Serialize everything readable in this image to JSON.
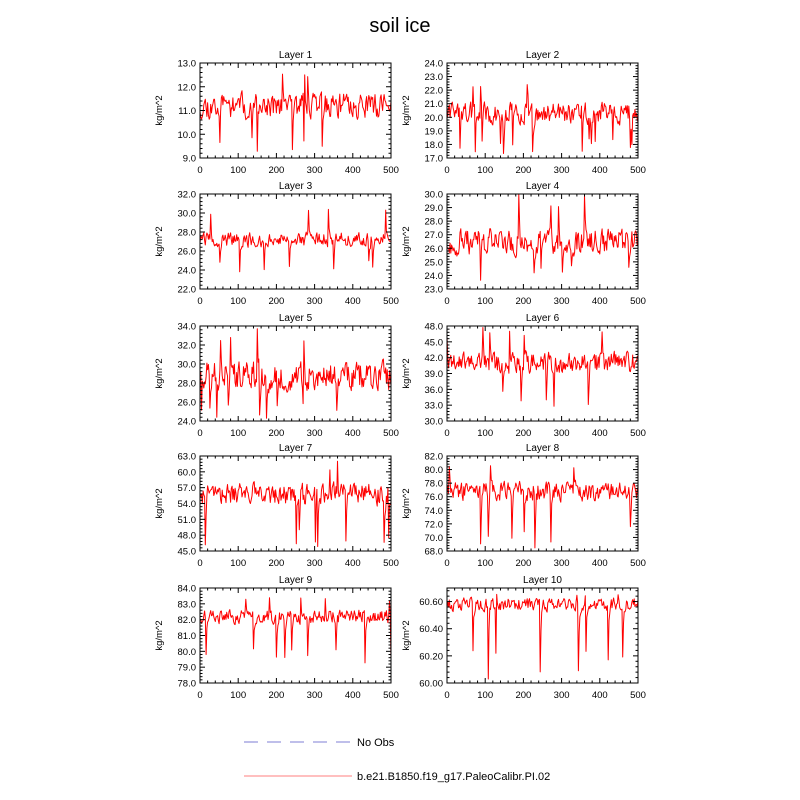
{
  "title": "soil ice",
  "chart_data": [
    {
      "type": "line",
      "title": "Layer 1",
      "ylabel": "kg/m^2",
      "xlim": [
        0,
        500
      ],
      "ylim": [
        9.0,
        13.0
      ],
      "yticks": [
        "9.0",
        "10.0",
        "11.0",
        "12.0",
        "13.0"
      ],
      "xticks": [
        "0",
        "100",
        "200",
        "300",
        "400",
        "500"
      ],
      "series": [
        {
          "name": "b.e21.B1850.f19_g17.PaleoCalibr.PI.02",
          "color": "#ff0000",
          "mean": 11.2,
          "spread": 0.55,
          "min": 9.0,
          "max": 12.8,
          "seed": 11
        }
      ]
    },
    {
      "type": "line",
      "title": "Layer 2",
      "ylabel": "kg/m^2",
      "xlim": [
        0,
        500
      ],
      "ylim": [
        17.0,
        24.0
      ],
      "yticks": [
        "17.0",
        "18.0",
        "19.0",
        "20.0",
        "21.0",
        "22.0",
        "23.0",
        "24.0"
      ],
      "xticks": [
        "0",
        "100",
        "200",
        "300",
        "400",
        "500"
      ],
      "series": [
        {
          "name": "b.e21.B1850.f19_g17.PaleoCalibr.PI.02",
          "color": "#ff0000",
          "mean": 20.3,
          "spread": 0.8,
          "min": 17.3,
          "max": 23.0,
          "seed": 22
        }
      ]
    },
    {
      "type": "line",
      "title": "Layer 3",
      "ylabel": "kg/m^2",
      "xlim": [
        0,
        500
      ],
      "ylim": [
        22.0,
        32.0
      ],
      "yticks": [
        "22.0",
        "24.0",
        "26.0",
        "28.0",
        "30.0",
        "32.0"
      ],
      "xticks": [
        "0",
        "100",
        "200",
        "300",
        "400",
        "500"
      ],
      "series": [
        {
          "name": "b.e21.B1850.f19_g17.PaleoCalibr.PI.02",
          "color": "#ff0000",
          "mean": 27.2,
          "spread": 0.8,
          "min": 23.5,
          "max": 30.8,
          "seed": 33
        }
      ]
    },
    {
      "type": "line",
      "title": "Layer 4",
      "ylabel": "kg/m^2",
      "xlim": [
        0,
        500
      ],
      "ylim": [
        23.0,
        30.0
      ],
      "yticks": [
        "23.0",
        "24.0",
        "25.0",
        "26.0",
        "27.0",
        "28.0",
        "29.0",
        "30.0"
      ],
      "xticks": [
        "0",
        "100",
        "200",
        "300",
        "400",
        "500"
      ],
      "series": [
        {
          "name": "b.e21.B1850.f19_g17.PaleoCalibr.PI.02",
          "color": "#ff0000",
          "mean": 26.5,
          "spread": 1.0,
          "min": 23.6,
          "max": 30.0,
          "seed": 44
        }
      ]
    },
    {
      "type": "line",
      "title": "Layer 5",
      "ylabel": "kg/m^2",
      "xlim": [
        0,
        500
      ],
      "ylim": [
        24.0,
        34.0
      ],
      "yticks": [
        "24.0",
        "26.0",
        "28.0",
        "30.0",
        "32.0",
        "34.0"
      ],
      "xticks": [
        "0",
        "100",
        "200",
        "300",
        "400",
        "500"
      ],
      "series": [
        {
          "name": "b.e21.B1850.f19_g17.PaleoCalibr.PI.02",
          "color": "#ff0000",
          "mean": 28.8,
          "spread": 1.6,
          "min": 24.2,
          "max": 33.8,
          "seed": 55
        }
      ]
    },
    {
      "type": "line",
      "title": "Layer 6",
      "ylabel": "kg/m^2",
      "xlim": [
        0,
        500
      ],
      "ylim": [
        30.0,
        48.0
      ],
      "yticks": [
        "30.0",
        "33.0",
        "36.0",
        "39.0",
        "42.0",
        "45.0",
        "48.0"
      ],
      "xticks": [
        "0",
        "100",
        "200",
        "300",
        "400",
        "500"
      ],
      "series": [
        {
          "name": "b.e21.B1850.f19_g17.PaleoCalibr.PI.02",
          "color": "#ff0000",
          "mean": 41.0,
          "spread": 2.1,
          "min": 32.2,
          "max": 47.8,
          "seed": 66
        }
      ]
    },
    {
      "type": "line",
      "title": "Layer 7",
      "ylabel": "kg/m^2",
      "xlim": [
        0,
        500
      ],
      "ylim": [
        45.0,
        63.0
      ],
      "yticks": [
        "45.0",
        "48.0",
        "51.0",
        "54.0",
        "57.0",
        "60.0",
        "63.0"
      ],
      "xticks": [
        "0",
        "100",
        "200",
        "300",
        "400",
        "500"
      ],
      "series": [
        {
          "name": "b.e21.B1850.f19_g17.PaleoCalibr.PI.02",
          "color": "#ff0000",
          "mean": 55.8,
          "spread": 2.1,
          "min": 45.2,
          "max": 62.0,
          "seed": 77
        }
      ]
    },
    {
      "type": "line",
      "title": "Layer 8",
      "ylabel": "kg/m^2",
      "xlim": [
        0,
        500
      ],
      "ylim": [
        68.0,
        82.0
      ],
      "yticks": [
        "68.0",
        "70.0",
        "72.0",
        "74.0",
        "76.0",
        "78.0",
        "80.0",
        "82.0"
      ],
      "xticks": [
        "0",
        "100",
        "200",
        "300",
        "400",
        "500"
      ],
      "series": [
        {
          "name": "b.e21.B1850.f19_g17.PaleoCalibr.PI.02",
          "color": "#ff0000",
          "mean": 76.8,
          "spread": 1.4,
          "min": 68.2,
          "max": 81.0,
          "seed": 88
        }
      ]
    },
    {
      "type": "line",
      "title": "Layer 9",
      "ylabel": "kg/m^2",
      "xlim": [
        0,
        500
      ],
      "ylim": [
        78.0,
        84.0
      ],
      "yticks": [
        "78.0",
        "79.0",
        "80.0",
        "81.0",
        "82.0",
        "83.0",
        "84.0"
      ],
      "xticks": [
        "0",
        "100",
        "200",
        "300",
        "400",
        "500"
      ],
      "series": [
        {
          "name": "b.e21.B1850.f19_g17.PaleoCalibr.PI.02",
          "color": "#ff0000",
          "mean": 82.2,
          "spread": 0.45,
          "min": 78.9,
          "max": 83.4,
          "seed": 99
        }
      ]
    },
    {
      "type": "line",
      "title": "Layer 10",
      "ylabel": "kg/m^2",
      "xlim": [
        0,
        500
      ],
      "ylim": [
        60.0,
        60.7
      ],
      "yticks": [
        "60.00",
        "60.20",
        "60.40",
        "60.60"
      ],
      "xticks": [
        "0",
        "100",
        "200",
        "300",
        "400",
        "500"
      ],
      "series": [
        {
          "name": "b.e21.B1850.f19_g17.PaleoCalibr.PI.02",
          "color": "#ff0000",
          "mean": 60.58,
          "spread": 0.05,
          "min": 60.01,
          "max": 60.66,
          "seed": 111
        }
      ]
    }
  ],
  "legend": [
    {
      "label": "No Obs",
      "color": "#9999dd",
      "style": "dashed"
    },
    {
      "label": "b.e21.B1850.f19_g17.PaleoCalibr.PI.02",
      "color": "#ff9999",
      "style": "solid"
    }
  ]
}
